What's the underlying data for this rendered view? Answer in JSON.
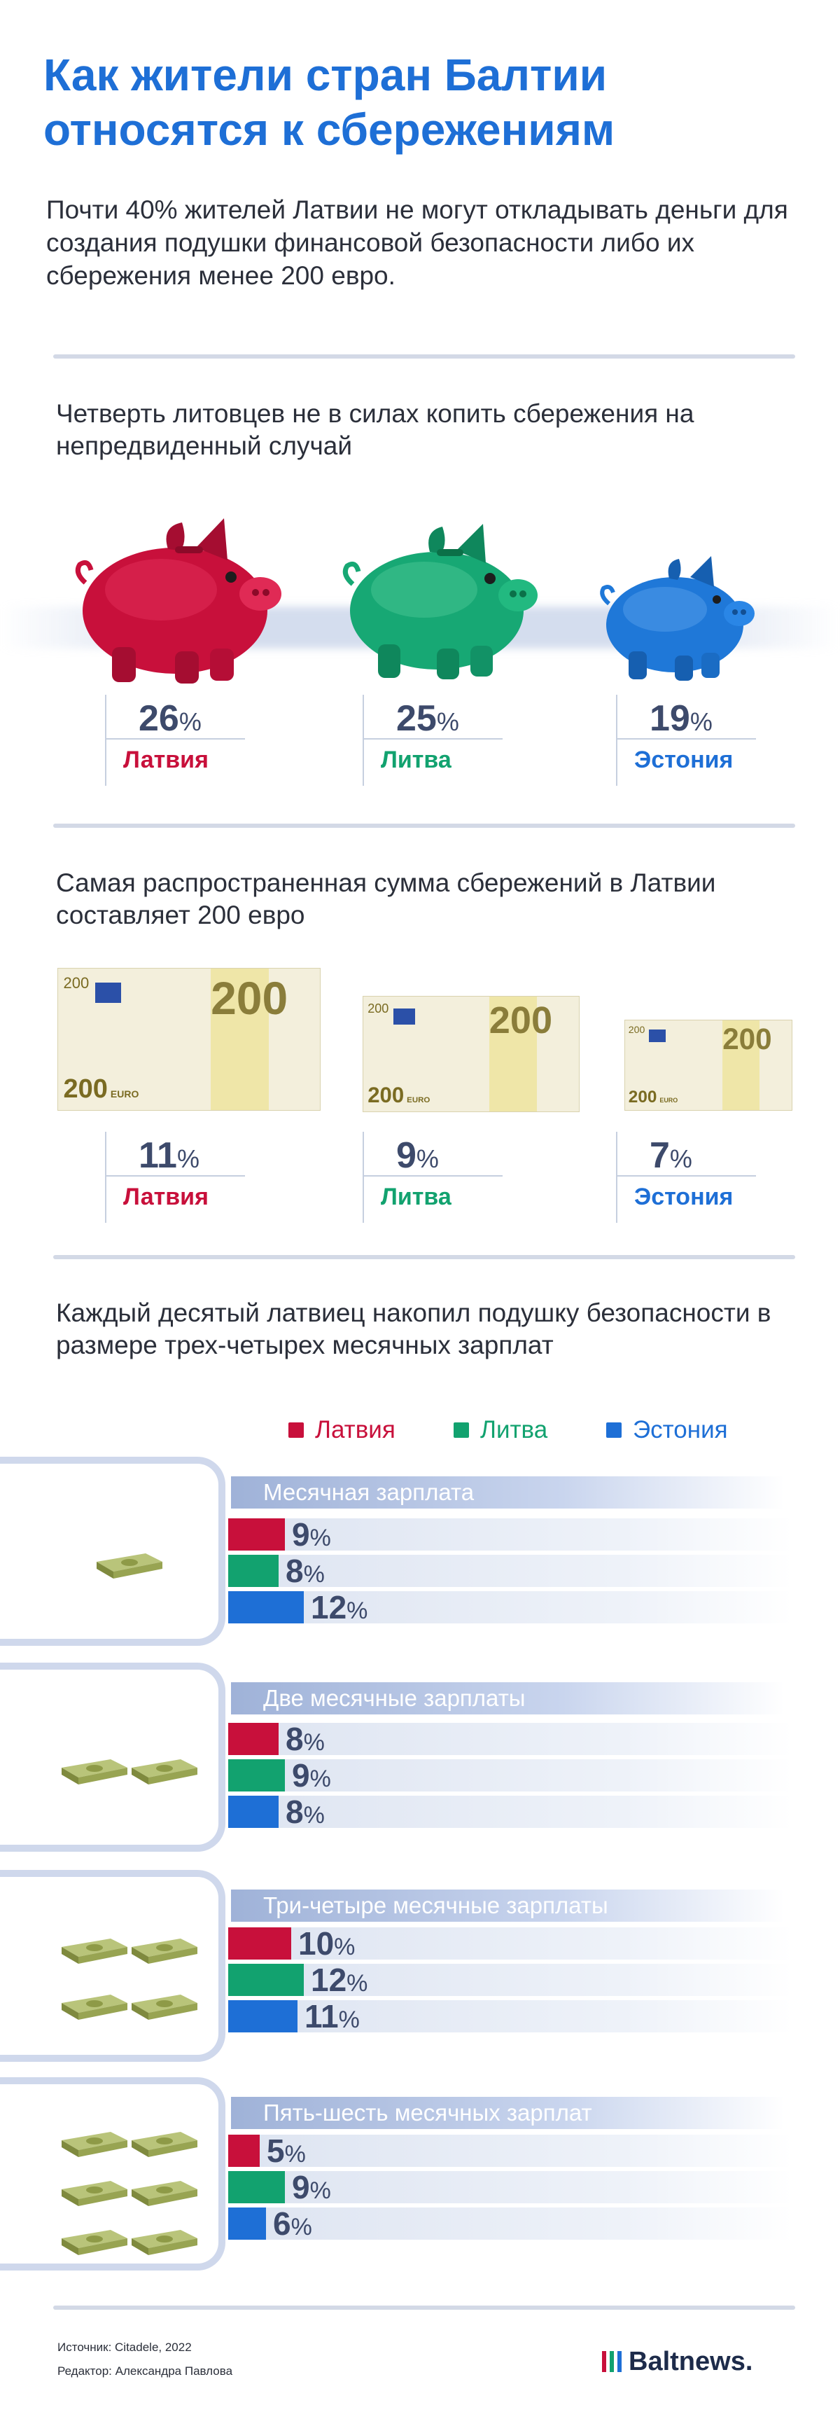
{
  "title": "Как жители стран Балтии относятся к сбережениям",
  "subtitle": "Почти 40% жителей Латвии не могут откладывать деньги для создания подушки финансовой безопасности либо их сбережения менее 200 евро.",
  "section1": {
    "heading": "Четверть литовцев не в силах копить сбережения на непредвиденный случай",
    "stats": [
      {
        "value": "26",
        "unit": "%",
        "country": "Латвия",
        "color": "#c8103b"
      },
      {
        "value": "25",
        "unit": "%",
        "country": "Литва",
        "color": "#12a26f"
      },
      {
        "value": "19",
        "unit": "%",
        "country": "Эстония",
        "color": "#1e6fd6"
      }
    ]
  },
  "section2": {
    "heading": "Самая распространенная сумма сбережений в Латвии составляет 200 евро",
    "banknote": {
      "denomination": "200",
      "currency": "EURO"
    },
    "stats": [
      {
        "value": "11",
        "unit": "%",
        "country": "Латвия"
      },
      {
        "value": "9",
        "unit": "%",
        "country": "Литва"
      },
      {
        "value": "7",
        "unit": "%",
        "country": "Эстония"
      }
    ]
  },
  "section3": {
    "heading": "Каждый десятый латвиец накопил подушку безопасности в размере трех-четырех месячных зарплат",
    "legend": [
      {
        "name": "Латвия",
        "color": "#c8103b"
      },
      {
        "name": "Литва",
        "color": "#12a26f"
      },
      {
        "name": "Эстония",
        "color": "#1e6fd6"
      }
    ]
  },
  "chart_data": {
    "type": "bar",
    "orientation": "horizontal",
    "categories": [
      "Месячная зарплата",
      "Две месячные зарплаты",
      "Три-четыре месячные зарплаты",
      "Пять-шесть месячных зарплат"
    ],
    "series": [
      {
        "name": "Латвия",
        "color": "#c8103b",
        "values": [
          9,
          8,
          10,
          5
        ]
      },
      {
        "name": "Литва",
        "color": "#12a26f",
        "values": [
          8,
          9,
          12,
          9
        ]
      },
      {
        "name": "Эстония",
        "color": "#1e6fd6",
        "values": [
          12,
          8,
          11,
          6
        ]
      }
    ],
    "unit": "%",
    "xlim": [
      0,
      100
    ],
    "legend_position": "top"
  },
  "footer": {
    "source": "Источник: Citadele, 2022",
    "editor": "Редактор: Александра Павлова",
    "logo": "Baltnews."
  }
}
